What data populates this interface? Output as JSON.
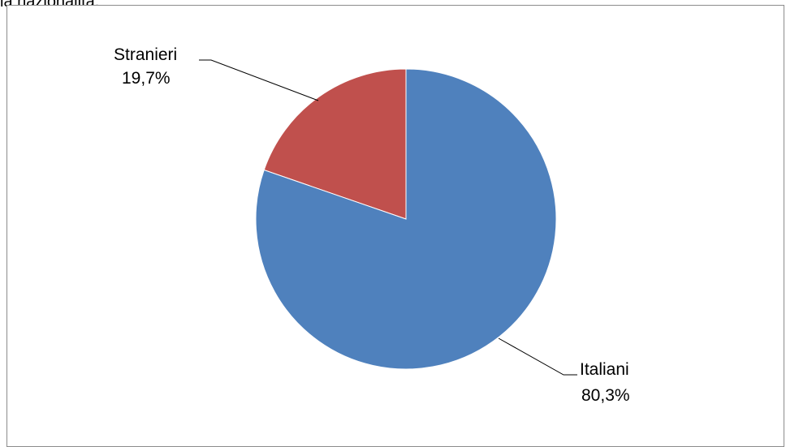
{
  "caption": "la nazionalità.",
  "chart_data": {
    "type": "pie",
    "title": "",
    "categories": [
      "Stranieri",
      "Italiani"
    ],
    "values": [
      19.7,
      80.3
    ],
    "value_labels": [
      "19,7%",
      "80,3%"
    ],
    "colors": [
      "#C0504D",
      "#4F81BD"
    ],
    "legend": "none",
    "data_labels": "outside-with-leader-lines"
  }
}
